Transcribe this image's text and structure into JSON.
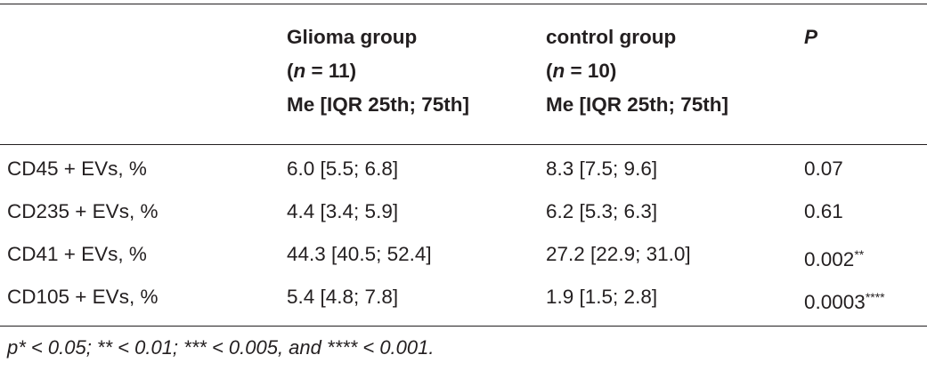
{
  "table": {
    "header": [
      {
        "lines": []
      },
      {
        "lines": [
          [
            {
              "text": "Glioma group"
            }
          ],
          [
            {
              "text": "("
            },
            {
              "text": "n",
              "italic": true
            },
            {
              "text": " = 11)"
            }
          ],
          [
            {
              "text": "Me [IQR 25th; 75th]"
            }
          ]
        ]
      },
      {
        "lines": [
          [
            {
              "text": "control group"
            }
          ],
          [
            {
              "text": "("
            },
            {
              "text": "n",
              "italic": true
            },
            {
              "text": " = 10)"
            }
          ],
          [
            {
              "text": "Me [IQR 25th; 75th]"
            }
          ]
        ]
      },
      {
        "lines": [
          [
            {
              "text": "P",
              "italic": true
            }
          ]
        ]
      }
    ],
    "rows": [
      [
        {
          "text": "CD45 + EVs, %"
        },
        {
          "text": "6.0 [5.5; 6.8]"
        },
        {
          "text": "8.3 [7.5; 9.6]"
        },
        {
          "text": "0.07"
        }
      ],
      [
        {
          "text": "CD235 + EVs, %"
        },
        {
          "text": "4.4 [3.4; 5.9]"
        },
        {
          "text": "6.2 [5.3; 6.3]"
        },
        {
          "text": "0.61"
        }
      ],
      [
        {
          "text": "CD41 + EVs, %"
        },
        {
          "text": "44.3 [40.5; 52.4]"
        },
        {
          "text": "27.2 [22.9; 31.0]"
        },
        {
          "text": "0.002",
          "sup": "**"
        }
      ],
      [
        {
          "text": "CD105 + EVs, %"
        },
        {
          "text": "5.4 [4.8; 7.8]"
        },
        {
          "text": "1.9 [1.5; 2.8]"
        },
        {
          "text": "0.0003",
          "sup": "****"
        }
      ]
    ],
    "footnote": "p* < 0.05; ** < 0.01; *** < 0.005, and **** < 0.001."
  }
}
